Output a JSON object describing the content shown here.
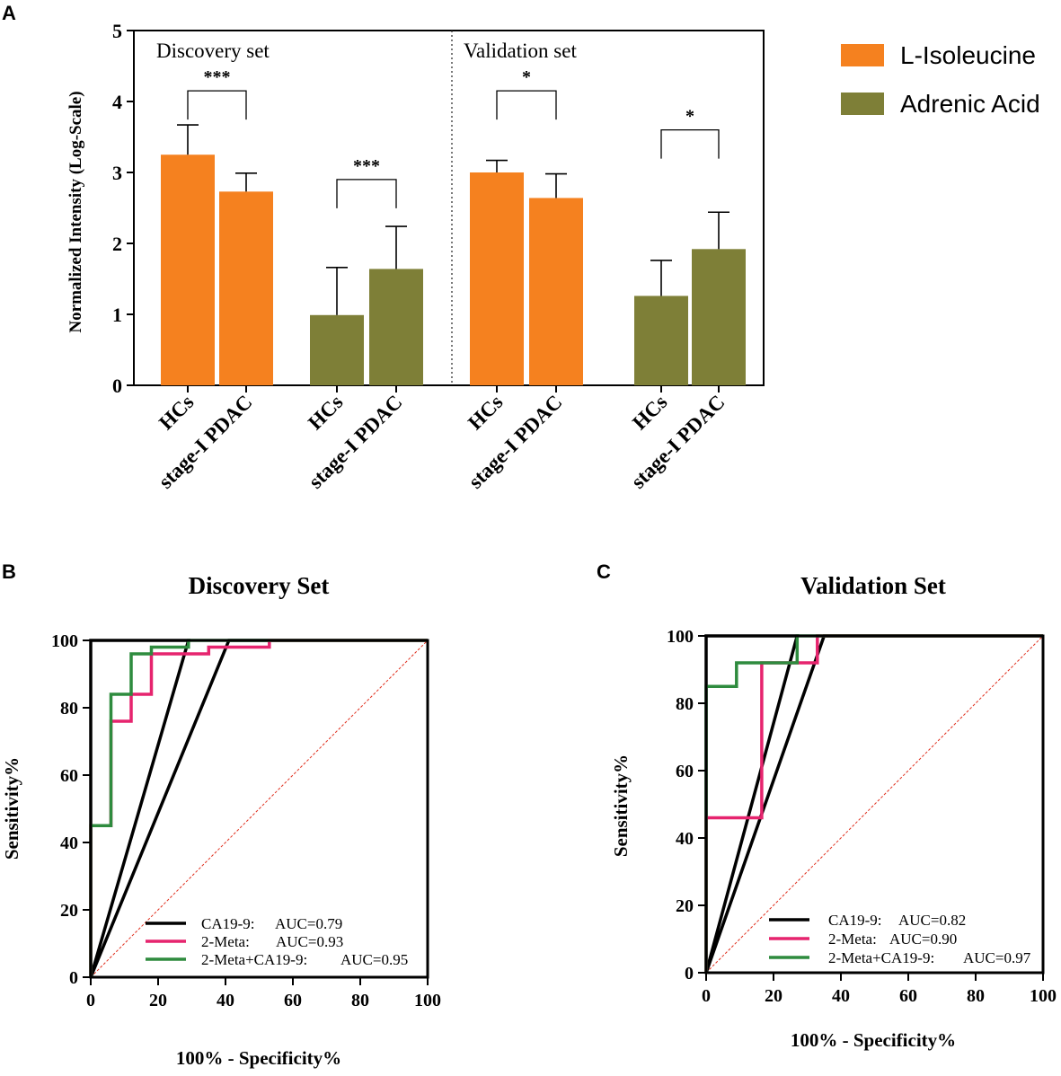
{
  "panels": {
    "a": {
      "letter": "A"
    },
    "b": {
      "letter": "B"
    },
    "c": {
      "letter": "C"
    }
  },
  "colors": {
    "isoleucine": "#F5811F",
    "adrenic": "#7E7F37",
    "ca199": "#000000",
    "meta2": "#E6246E",
    "combo": "#2E8B3E",
    "reference": "#E0301E"
  },
  "chart_data": [
    {
      "id": "A",
      "type": "bar",
      "ylabel": "Normalized Intensity (Log-Scale)",
      "ylim": [
        0,
        5
      ],
      "yticks": [
        0,
        1,
        2,
        3,
        4,
        5
      ],
      "sections": [
        "Discovery set",
        "Validation set"
      ],
      "legend": [
        "L-Isoleucine",
        "Adrenic Acid"
      ],
      "bars": [
        {
          "set": "Discovery set",
          "series": "L-Isoleucine",
          "group": "HCs",
          "value": 3.25,
          "error": 0.42
        },
        {
          "set": "Discovery set",
          "series": "L-Isoleucine",
          "group": "stage-I PDAC",
          "value": 2.73,
          "error": 0.26
        },
        {
          "set": "Discovery set",
          "series": "Adrenic Acid",
          "group": "HCs",
          "value": 0.99,
          "error": 0.67
        },
        {
          "set": "Discovery set",
          "series": "Adrenic Acid",
          "group": "stage-I PDAC",
          "value": 1.64,
          "error": 0.6
        },
        {
          "set": "Validation set",
          "series": "L-Isoleucine",
          "group": "HCs",
          "value": 3.0,
          "error": 0.17
        },
        {
          "set": "Validation set",
          "series": "L-Isoleucine",
          "group": "stage-I PDAC",
          "value": 2.64,
          "error": 0.34
        },
        {
          "set": "Validation set",
          "series": "Adrenic Acid",
          "group": "HCs",
          "value": 1.26,
          "error": 0.5
        },
        {
          "set": "Validation set",
          "series": "Adrenic Acid",
          "group": "stage-I PDAC",
          "value": 1.92,
          "error": 0.52
        }
      ],
      "significance": [
        {
          "bars": [
            0,
            1
          ],
          "label": "***",
          "level": 4.15
        },
        {
          "bars": [
            2,
            3
          ],
          "label": "***",
          "level": 2.9
        },
        {
          "bars": [
            4,
            5
          ],
          "label": "*",
          "level": 4.15
        },
        {
          "bars": [
            6,
            7
          ],
          "label": "*",
          "level": 3.6
        }
      ]
    },
    {
      "id": "B",
      "type": "line",
      "title": "Discovery Set",
      "xlabel": "100% - Specificity%",
      "ylabel": "Sensitivity%",
      "xlim": [
        0,
        100
      ],
      "ylim": [
        0,
        100
      ],
      "ticks": [
        0,
        20,
        40,
        60,
        80,
        100
      ],
      "series": [
        {
          "name": "CA19-9",
          "legend_name": "CA19-9:",
          "auc_text": "AUC=0.79",
          "color_key": "ca199",
          "points": [
            [
              0,
              0
            ],
            [
              0,
              45
            ],
            [
              0,
              100
            ],
            [
              29,
              100
            ],
            [
              0,
              0
            ],
            [
              41,
              100
            ],
            [
              100,
              100
            ]
          ]
        },
        {
          "name": "2-Meta",
          "legend_name": "2-Meta:",
          "auc_text": "AUC=0.93",
          "color_key": "meta2",
          "points": [
            [
              0,
              0
            ],
            [
              0,
              45
            ],
            [
              6,
              45
            ],
            [
              6,
              76
            ],
            [
              12,
              76
            ],
            [
              12,
              84
            ],
            [
              18,
              84
            ],
            [
              18,
              96
            ],
            [
              35,
              96
            ],
            [
              35,
              98
            ],
            [
              53,
              98
            ],
            [
              53,
              100
            ],
            [
              100,
              100
            ]
          ]
        },
        {
          "name": "2-Meta+CA19-9",
          "legend_name": "2-Meta+CA19-9:",
          "auc_text": "AUC=0.95",
          "color_key": "combo",
          "points": [
            [
              0,
              0
            ],
            [
              0,
              45
            ],
            [
              6,
              45
            ],
            [
              6,
              84
            ],
            [
              12,
              84
            ],
            [
              12,
              96
            ],
            [
              18,
              96
            ],
            [
              18,
              98
            ],
            [
              29,
              98
            ],
            [
              29,
              100
            ],
            [
              100,
              100
            ]
          ]
        }
      ]
    },
    {
      "id": "C",
      "type": "line",
      "title": "Validation Set",
      "xlabel": "100% - Specificity%",
      "ylabel": "Sensitivity%",
      "xlim": [
        0,
        100
      ],
      "ylim": [
        0,
        100
      ],
      "ticks": [
        0,
        20,
        40,
        60,
        80,
        100
      ],
      "series": [
        {
          "name": "CA19-9",
          "legend_name": "CA19-9:",
          "auc_text": "AUC=0.82",
          "color_key": "ca199",
          "points": [
            [
              0,
              0
            ],
            [
              0,
              100
            ],
            [
              27,
              100
            ],
            [
              0,
              0
            ],
            [
              35,
              100
            ],
            [
              100,
              100
            ]
          ]
        },
        {
          "name": "2-Meta",
          "legend_name": "2-Meta:",
          "auc_text": "AUC=0.90",
          "color_key": "meta2",
          "points": [
            [
              0,
              0
            ],
            [
              0,
              46
            ],
            [
              16.5,
              46
            ],
            [
              16.5,
              92
            ],
            [
              33,
              92
            ],
            [
              33,
              100
            ],
            [
              100,
              100
            ]
          ]
        },
        {
          "name": "2-Meta+CA19-9",
          "legend_name": "2-Meta+CA19-9:",
          "auc_text": "AUC=0.97",
          "color_key": "combo",
          "points": [
            [
              0,
              0
            ],
            [
              0,
              85
            ],
            [
              9,
              85
            ],
            [
              9,
              92
            ],
            [
              27,
              92
            ],
            [
              27,
              100
            ],
            [
              100,
              100
            ]
          ]
        }
      ]
    }
  ]
}
